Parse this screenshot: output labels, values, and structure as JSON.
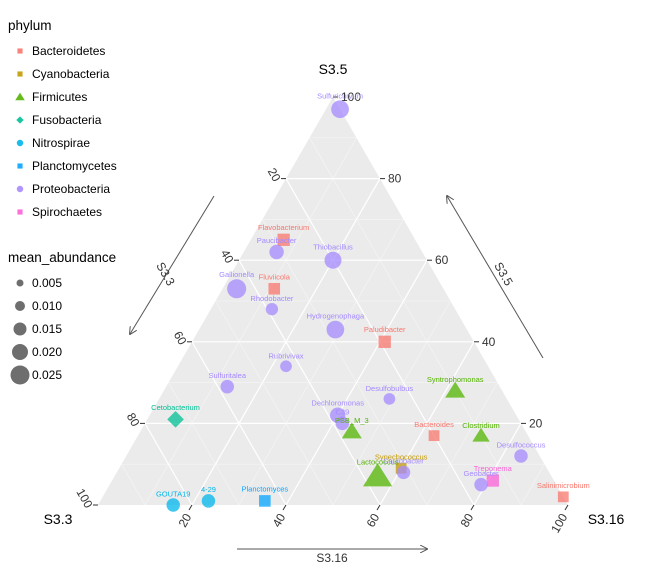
{
  "chart_data": {
    "type": "ternary-scatter",
    "vertex_labels": {
      "left": "S3.3",
      "top": "S3.5",
      "right": "S3.16"
    },
    "arrow_labels": {
      "left": "S3.3",
      "right": "S3.5",
      "bottom": "S3.16"
    },
    "ticks": {
      "left": [
        "20",
        "40",
        "60",
        "80",
        "100"
      ],
      "right": [
        "20",
        "40",
        "60",
        "80",
        "100"
      ],
      "bottom": [
        "20",
        "40",
        "60",
        "80",
        "100"
      ]
    },
    "grid": true,
    "legend_phylum": {
      "title": "phylum",
      "entries": [
        {
          "name": "Bacteroidetes",
          "color": "#F8766D",
          "shape": "square"
        },
        {
          "name": "Cyanobacteria",
          "color": "#C49A00",
          "shape": "square"
        },
        {
          "name": "Firmicutes",
          "color": "#53B400",
          "shape": "triangle"
        },
        {
          "name": "Fusobacteria",
          "color": "#00C094",
          "shape": "diamond"
        },
        {
          "name": "Nitrospirae",
          "color": "#00B6EB",
          "shape": "circle"
        },
        {
          "name": "Planctomycetes",
          "color": "#06A4FF",
          "shape": "square"
        },
        {
          "name": "Proteobacteria",
          "color": "#A58AFF",
          "shape": "circle"
        },
        {
          "name": "Spirochaetes",
          "color": "#FB61D7",
          "shape": "square"
        }
      ]
    },
    "legend_size": {
      "title": "mean_abundance",
      "entries": [
        {
          "label": "0.005",
          "value": 0.005
        },
        {
          "label": "0.010",
          "value": 0.01
        },
        {
          "label": "0.015",
          "value": 0.015
        },
        {
          "label": "0.020",
          "value": 0.02
        },
        {
          "label": "0.025",
          "value": 0.025
        }
      ]
    },
    "points": [
      {
        "label": "Sulfuricurvum",
        "phylum": "Proteobacteria",
        "S3.3": 0,
        "S3.5": 97,
        "S3.16": 3,
        "abundance": 0.018
      },
      {
        "label": "Flavobacterium",
        "phylum": "Bacteroidetes",
        "S3.3": 28,
        "S3.5": 65,
        "S3.16": 7,
        "abundance": 0.012
      },
      {
        "label": "Paucibacter",
        "phylum": "Proteobacteria",
        "S3.3": 31,
        "S3.5": 62,
        "S3.16": 7,
        "abundance": 0.01
      },
      {
        "label": "Thiobacillus",
        "phylum": "Proteobacteria",
        "S3.3": 20,
        "S3.5": 60,
        "S3.16": 20,
        "abundance": 0.016
      },
      {
        "label": "Gallionella",
        "phylum": "Proteobacteria",
        "S3.3": 44,
        "S3.5": 53,
        "S3.16": 3,
        "abundance": 0.022
      },
      {
        "label": "Fluviicola",
        "phylum": "Bacteroidetes",
        "S3.3": 36,
        "S3.5": 53,
        "S3.16": 11,
        "abundance": 0.01
      },
      {
        "label": "Rhodobacter",
        "phylum": "Proteobacteria",
        "S3.3": 39,
        "S3.5": 48,
        "S3.16": 13,
        "abundance": 0.006
      },
      {
        "label": "Hydrogenophaga",
        "phylum": "Proteobacteria",
        "S3.3": 28,
        "S3.5": 43,
        "S3.16": 29,
        "abundance": 0.018
      },
      {
        "label": "Paludibacter",
        "phylum": "Bacteroidetes",
        "S3.3": 19,
        "S3.5": 40,
        "S3.16": 41,
        "abundance": 0.012
      },
      {
        "label": "Rubrivivax",
        "phylum": "Proteobacteria",
        "S3.3": 43,
        "S3.5": 34,
        "S3.16": 23,
        "abundance": 0.005
      },
      {
        "label": "Sulfuritalea",
        "phylum": "Proteobacteria",
        "S3.3": 58,
        "S3.5": 29,
        "S3.16": 13,
        "abundance": 0.008
      },
      {
        "label": "Desulfobulbus",
        "phylum": "Proteobacteria",
        "S3.3": 25,
        "S3.5": 26,
        "S3.16": 49,
        "abundance": 0.005
      },
      {
        "label": "Syntrophomonas",
        "phylum": "Firmicutes",
        "S3.3": 10,
        "S3.5": 28,
        "S3.16": 62,
        "abundance": 0.008
      },
      {
        "label": "Dechloromonas",
        "phylum": "Proteobacteria",
        "S3.3": 38,
        "S3.5": 22,
        "S3.16": 40,
        "abundance": 0.012
      },
      {
        "label": "C39",
        "phylum": "Proteobacteria",
        "S3.3": 38,
        "S3.5": 20,
        "S3.16": 42,
        "abundance": 0.008
      },
      {
        "label": "Cetobacterium",
        "phylum": "Fusobacteria",
        "S3.3": 73,
        "S3.5": 21,
        "S3.16": 6,
        "abundance": 0.01
      },
      {
        "label": "PSB_M_3",
        "phylum": "Firmicutes",
        "S3.3": 37,
        "S3.5": 18,
        "S3.16": 45,
        "abundance": 0.008
      },
      {
        "label": "Bacteroides",
        "phylum": "Bacteroidetes",
        "S3.3": 20,
        "S3.5": 17,
        "S3.16": 63,
        "abundance": 0.008
      },
      {
        "label": "Clostridium",
        "phylum": "Firmicutes",
        "S3.3": 10,
        "S3.5": 17,
        "S3.16": 73,
        "abundance": 0.005
      },
      {
        "label": "Desulfococcus",
        "phylum": "Proteobacteria",
        "S3.3": 4,
        "S3.5": 12,
        "S3.16": 84,
        "abundance": 0.008
      },
      {
        "label": "Synechococcus",
        "phylum": "Cyanobacteria",
        "S3.3": 31,
        "S3.5": 9,
        "S3.16": 60,
        "abundance": 0.008
      },
      {
        "label": "Caulobacter",
        "phylum": "Proteobacteria",
        "S3.3": 31,
        "S3.5": 8,
        "S3.16": 61,
        "abundance": 0.008
      },
      {
        "label": "Lactococcus",
        "phylum": "Firmicutes",
        "S3.3": 37,
        "S3.5": 7,
        "S3.16": 56,
        "abundance": 0.024
      },
      {
        "label": "Treponema",
        "phylum": "Spirochaetes",
        "S3.3": 13,
        "S3.5": 6,
        "S3.16": 81,
        "abundance": 0.012
      },
      {
        "label": "Geobacter",
        "phylum": "Proteobacteria",
        "S3.3": 16,
        "S3.5": 5,
        "S3.16": 79,
        "abundance": 0.008
      },
      {
        "label": "Salinimicrobium",
        "phylum": "Bacteroidetes",
        "S3.3": 0,
        "S3.5": 2,
        "S3.16": 98,
        "abundance": 0.008
      },
      {
        "label": "Planctomyces",
        "phylum": "Planctomycetes",
        "S3.3": 64,
        "S3.5": 1,
        "S3.16": 35,
        "abundance": 0.01
      },
      {
        "label": "GOUTA19",
        "phylum": "Nitrospirae",
        "S3.3": 84,
        "S3.5": 0,
        "S3.16": 16,
        "abundance": 0.008
      },
      {
        "label": "4-29",
        "phylum": "Nitrospirae",
        "S3.3": 76,
        "S3.5": 1,
        "S3.16": 23,
        "abundance": 0.008
      }
    ]
  }
}
